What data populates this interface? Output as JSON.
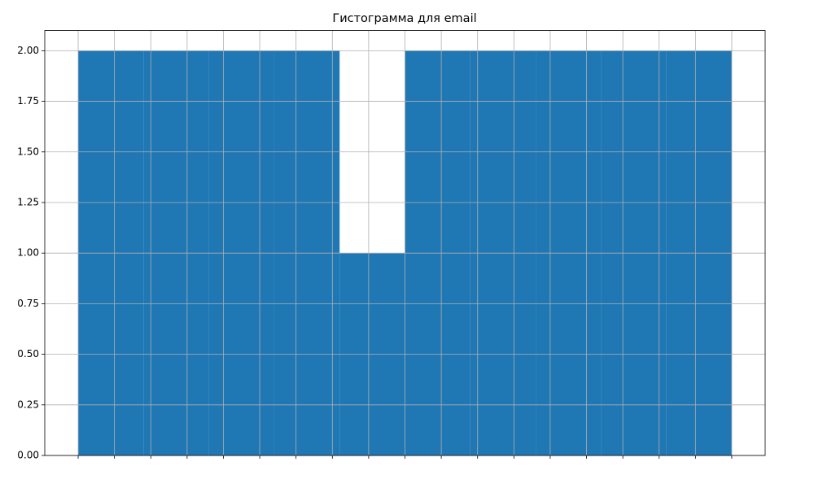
{
  "chart_data": {
    "type": "histogram",
    "title": "Гистограмма для email",
    "bins": [
      0,
      1.8,
      3.6,
      5.4,
      7.2,
      9,
      10.8,
      12.6,
      14.4,
      16.2,
      18
    ],
    "values": [
      2,
      2,
      2,
      2,
      1,
      2,
      2,
      2,
      2,
      2
    ],
    "color": "#1f77b4",
    "xlim": [
      -0.92,
      18.92
    ],
    "xticks": [
      0,
      1,
      2,
      3,
      4,
      5,
      6,
      7,
      8,
      9,
      10,
      11,
      12,
      13,
      14,
      15,
      16,
      17,
      18
    ],
    "ylim": [
      0,
      2.1
    ],
    "yticks": [
      {
        "value": 0,
        "label": "0.00"
      },
      {
        "value": 0.25,
        "label": "0.25"
      },
      {
        "value": 0.5,
        "label": "0.50"
      },
      {
        "value": 0.75,
        "label": "0.75"
      },
      {
        "value": 1,
        "label": "1.00"
      },
      {
        "value": 1.25,
        "label": "1.25"
      },
      {
        "value": 1.5,
        "label": "1.50"
      },
      {
        "value": 1.75,
        "label": "1.75"
      },
      {
        "value": 2,
        "label": "2.00"
      }
    ],
    "grid": true
  }
}
